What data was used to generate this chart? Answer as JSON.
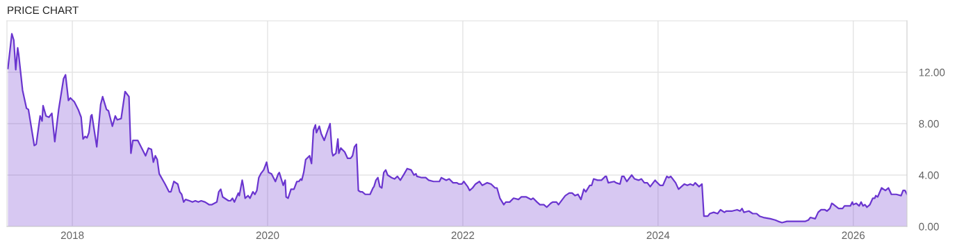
{
  "chart_data": {
    "type": "area",
    "title": "PRICE CHART",
    "xlim": [
      2017.33,
      2026.55
    ],
    "xticks": [
      2018,
      2020,
      2022,
      2024,
      2026
    ],
    "ylim": [
      0,
      16
    ],
    "yticks": [
      {
        "value": 0,
        "label": "0.00"
      },
      {
        "value": 4,
        "label": "4.00"
      },
      {
        "value": 8,
        "label": "8.00"
      },
      {
        "value": 12,
        "label": "12.00"
      }
    ],
    "grid": true,
    "legend": false,
    "marker": "none",
    "line_style": "solid",
    "series": [
      {
        "color": "#6a35cf",
        "x": [
          2017.34,
          2017.38,
          2017.4,
          2017.42,
          2017.44,
          2017.45,
          2017.49,
          2017.53,
          2017.55,
          2017.61,
          2017.63,
          2017.67,
          2017.69,
          2017.7,
          2017.73,
          2017.76,
          2017.79,
          2017.82,
          2017.86,
          2017.91,
          2017.93,
          2017.96,
          2017.98,
          2018.02,
          2018.06,
          2018.09,
          2018.11,
          2018.13,
          2018.15,
          2018.17,
          2018.19,
          2018.2,
          2018.25,
          2018.29,
          2018.31,
          2018.35,
          2018.37,
          2018.41,
          2018.44,
          2018.46,
          2018.5,
          2018.54,
          2018.58,
          2018.6,
          2018.62,
          2018.67,
          2018.75,
          2018.78,
          2018.81,
          2018.83,
          2018.85,
          2018.87,
          2018.89,
          2018.95,
          2018.99,
          2019.01,
          2019.04,
          2019.08,
          2019.1,
          2019.12,
          2019.14,
          2019.16,
          2019.2,
          2019.23,
          2019.26,
          2019.29,
          2019.32,
          2019.36,
          2019.4,
          2019.43,
          2019.48,
          2019.5,
          2019.52,
          2019.54,
          2019.6,
          2019.62,
          2019.64,
          2019.66,
          2019.7,
          2019.71,
          2019.74,
          2019.75,
          2019.77,
          2019.8,
          2019.82,
          2019.85,
          2019.87,
          2019.89,
          2019.91,
          2019.93,
          2019.96,
          2019.99,
          2020.01,
          2020.04,
          2020.08,
          2020.11,
          2020.12,
          2020.16,
          2020.18,
          2020.19,
          2020.21,
          2020.24,
          2020.27,
          2020.3,
          2020.32,
          2020.34,
          2020.35,
          2020.37,
          2020.39,
          2020.43,
          2020.45,
          2020.47,
          2020.49,
          2020.5,
          2020.53,
          2020.55,
          2020.58,
          2020.64,
          2020.66,
          2020.67,
          2020.7,
          2020.72,
          2020.73,
          2020.75,
          2020.79,
          2020.82,
          2020.85,
          2020.87,
          2020.89,
          2020.91,
          2020.93,
          2020.95,
          2020.97,
          2021.0,
          2021.05,
          2021.08,
          2021.09,
          2021.11,
          2021.13,
          2021.15,
          2021.17,
          2021.19,
          2021.21,
          2021.23,
          2021.27,
          2021.3,
          2021.33,
          2021.36,
          2021.4,
          2021.43,
          2021.47,
          2021.5,
          2021.52,
          2021.53,
          2021.58,
          2021.62,
          2021.65,
          2021.7,
          2021.76,
          2021.78,
          2021.83,
          2021.86,
          2021.9,
          2021.94,
          2021.96,
          2021.99,
          2022.01,
          2022.04,
          2022.05,
          2022.07,
          2022.1,
          2022.13,
          2022.17,
          2022.2,
          2022.25,
          2022.29,
          2022.33,
          2022.35,
          2022.38,
          2022.42,
          2022.44,
          2022.48,
          2022.52,
          2022.57,
          2022.6,
          2022.65,
          2022.7,
          2022.72,
          2022.76,
          2022.79,
          2022.83,
          2022.86,
          2022.9,
          2022.92,
          2022.96,
          2022.98,
          2023.02,
          2023.05,
          2023.09,
          2023.12,
          2023.15,
          2023.18,
          2023.21,
          2023.24,
          2023.26,
          2023.3,
          2023.32,
          2023.34,
          2023.38,
          2023.42,
          2023.46,
          2023.47,
          2023.49,
          2023.55,
          2023.57,
          2023.61,
          2023.63,
          2023.65,
          2023.68,
          2023.73,
          2023.76,
          2023.8,
          2023.83,
          2023.86,
          2023.89,
          2023.92,
          2023.97,
          2023.98,
          2024.02,
          2024.05,
          2024.09,
          2024.11,
          2024.13,
          2024.18,
          2024.21,
          2024.24,
          2024.27,
          2024.3,
          2024.33,
          2024.36,
          2024.38,
          2024.42,
          2024.45,
          2024.47,
          2024.51,
          2024.53,
          2024.57,
          2024.61,
          2024.64,
          2024.68,
          2024.7,
          2024.76,
          2024.81,
          2024.84,
          2024.86,
          2024.88,
          2024.93,
          2024.97,
          2025.01,
          2025.04,
          2025.08,
          2025.15,
          2025.2,
          2025.23,
          2025.27,
          2025.32,
          2025.42,
          2025.51,
          2025.54,
          2025.56,
          2025.61,
          2025.64,
          2025.67,
          2025.71,
          2025.73,
          2025.76,
          2025.78,
          2025.8,
          2025.85,
          2025.89,
          2025.91,
          2025.95,
          2025.97,
          2025.99,
          2026.0,
          2026.03,
          2026.06,
          2026.08,
          2026.1,
          2026.12,
          2026.14,
          2026.17,
          2026.2,
          2026.22,
          2026.23,
          2026.25,
          2026.29,
          2026.33,
          2026.36,
          2026.39,
          2026.44,
          2026.49,
          2026.51,
          2026.53,
          2026.55
        ],
        "values": [
          12.3,
          15.0,
          14.5,
          12.2,
          13.9,
          13.4,
          10.6,
          9.2,
          9.1,
          6.3,
          6.4,
          8.6,
          8.2,
          9.4,
          8.6,
          8.5,
          8.8,
          6.6,
          9.1,
          11.5,
          11.8,
          9.8,
          10.0,
          9.7,
          9.1,
          8.5,
          6.8,
          7.0,
          6.9,
          7.3,
          8.6,
          8.7,
          6.2,
          9.5,
          10.1,
          9.1,
          9.0,
          7.8,
          8.6,
          8.3,
          8.4,
          10.5,
          10.1,
          5.7,
          6.7,
          6.7,
          5.5,
          6.1,
          6.0,
          5.0,
          5.5,
          5.2,
          4.1,
          3.3,
          2.7,
          2.7,
          3.5,
          3.3,
          2.7,
          2.5,
          1.9,
          2.1,
          2.0,
          1.9,
          2.0,
          1.9,
          2.0,
          1.9,
          1.7,
          1.7,
          1.9,
          2.7,
          2.9,
          2.3,
          2.0,
          2.0,
          2.2,
          1.9,
          2.6,
          2.4,
          3.6,
          3.2,
          2.2,
          2.4,
          2.2,
          2.7,
          2.5,
          2.8,
          3.8,
          4.1,
          4.4,
          5.0,
          4.2,
          4.1,
          3.5,
          4.1,
          4.2,
          3.2,
          3.6,
          2.3,
          2.2,
          2.9,
          2.9,
          3.5,
          3.5,
          3.7,
          3.6,
          4.2,
          5.2,
          5.5,
          4.9,
          7.5,
          7.9,
          7.3,
          7.8,
          7.2,
          6.7,
          8.0,
          5.8,
          5.5,
          5.7,
          6.8,
          5.7,
          6.1,
          5.8,
          5.3,
          5.3,
          5.5,
          6.2,
          6.4,
          2.8,
          2.7,
          2.7,
          2.5,
          2.5,
          3.0,
          3.1,
          3.6,
          3.8,
          3.1,
          3.0,
          4.2,
          4.4,
          4.0,
          3.8,
          3.7,
          3.9,
          3.6,
          4.1,
          4.5,
          4.4,
          4.0,
          4.1,
          3.9,
          3.8,
          3.8,
          3.6,
          3.5,
          3.5,
          3.8,
          3.6,
          3.7,
          3.4,
          3.4,
          3.3,
          3.3,
          3.5,
          3.2,
          3.1,
          2.8,
          3.0,
          3.3,
          3.5,
          3.2,
          3.4,
          3.3,
          3.0,
          3.0,
          2.2,
          1.7,
          1.9,
          1.9,
          2.2,
          2.1,
          2.3,
          2.3,
          2.1,
          2.2,
          1.9,
          1.7,
          1.7,
          1.5,
          1.8,
          1.9,
          1.9,
          1.7,
          2.1,
          2.4,
          2.6,
          2.6,
          2.4,
          2.5,
          2.1,
          2.9,
          2.7,
          3.2,
          3.2,
          3.7,
          3.6,
          3.6,
          3.9,
          3.9,
          3.4,
          3.5,
          3.4,
          3.3,
          3.9,
          3.9,
          3.5,
          4.0,
          3.7,
          3.6,
          3.7,
          3.4,
          3.4,
          3.1,
          3.6,
          3.5,
          3.2,
          3.2,
          3.9,
          3.8,
          3.9,
          3.4,
          2.9,
          3.1,
          3.3,
          3.2,
          3.3,
          3.2,
          3.4,
          3.1,
          3.3,
          0.8,
          0.8,
          1.0,
          1.1,
          1.0,
          1.3,
          1.1,
          1.2,
          1.2,
          1.3,
          1.2,
          1.4,
          1.1,
          1.2,
          1.0,
          1.0,
          0.8,
          0.7,
          0.6,
          0.5,
          0.4,
          0.3,
          0.4,
          0.4,
          0.4,
          0.5,
          0.7,
          0.6,
          1.1,
          1.3,
          1.3,
          1.2,
          1.4,
          1.8,
          1.7,
          1.4,
          1.4,
          1.6,
          1.6,
          1.6,
          1.9,
          1.7,
          1.8,
          1.6,
          1.9,
          1.6,
          1.7,
          1.5,
          1.7,
          2.2,
          2.2,
          2.4,
          2.3,
          3.0,
          2.8,
          3.0,
          2.5,
          2.5,
          2.4,
          2.8,
          2.8,
          2.5
        ]
      }
    ]
  }
}
